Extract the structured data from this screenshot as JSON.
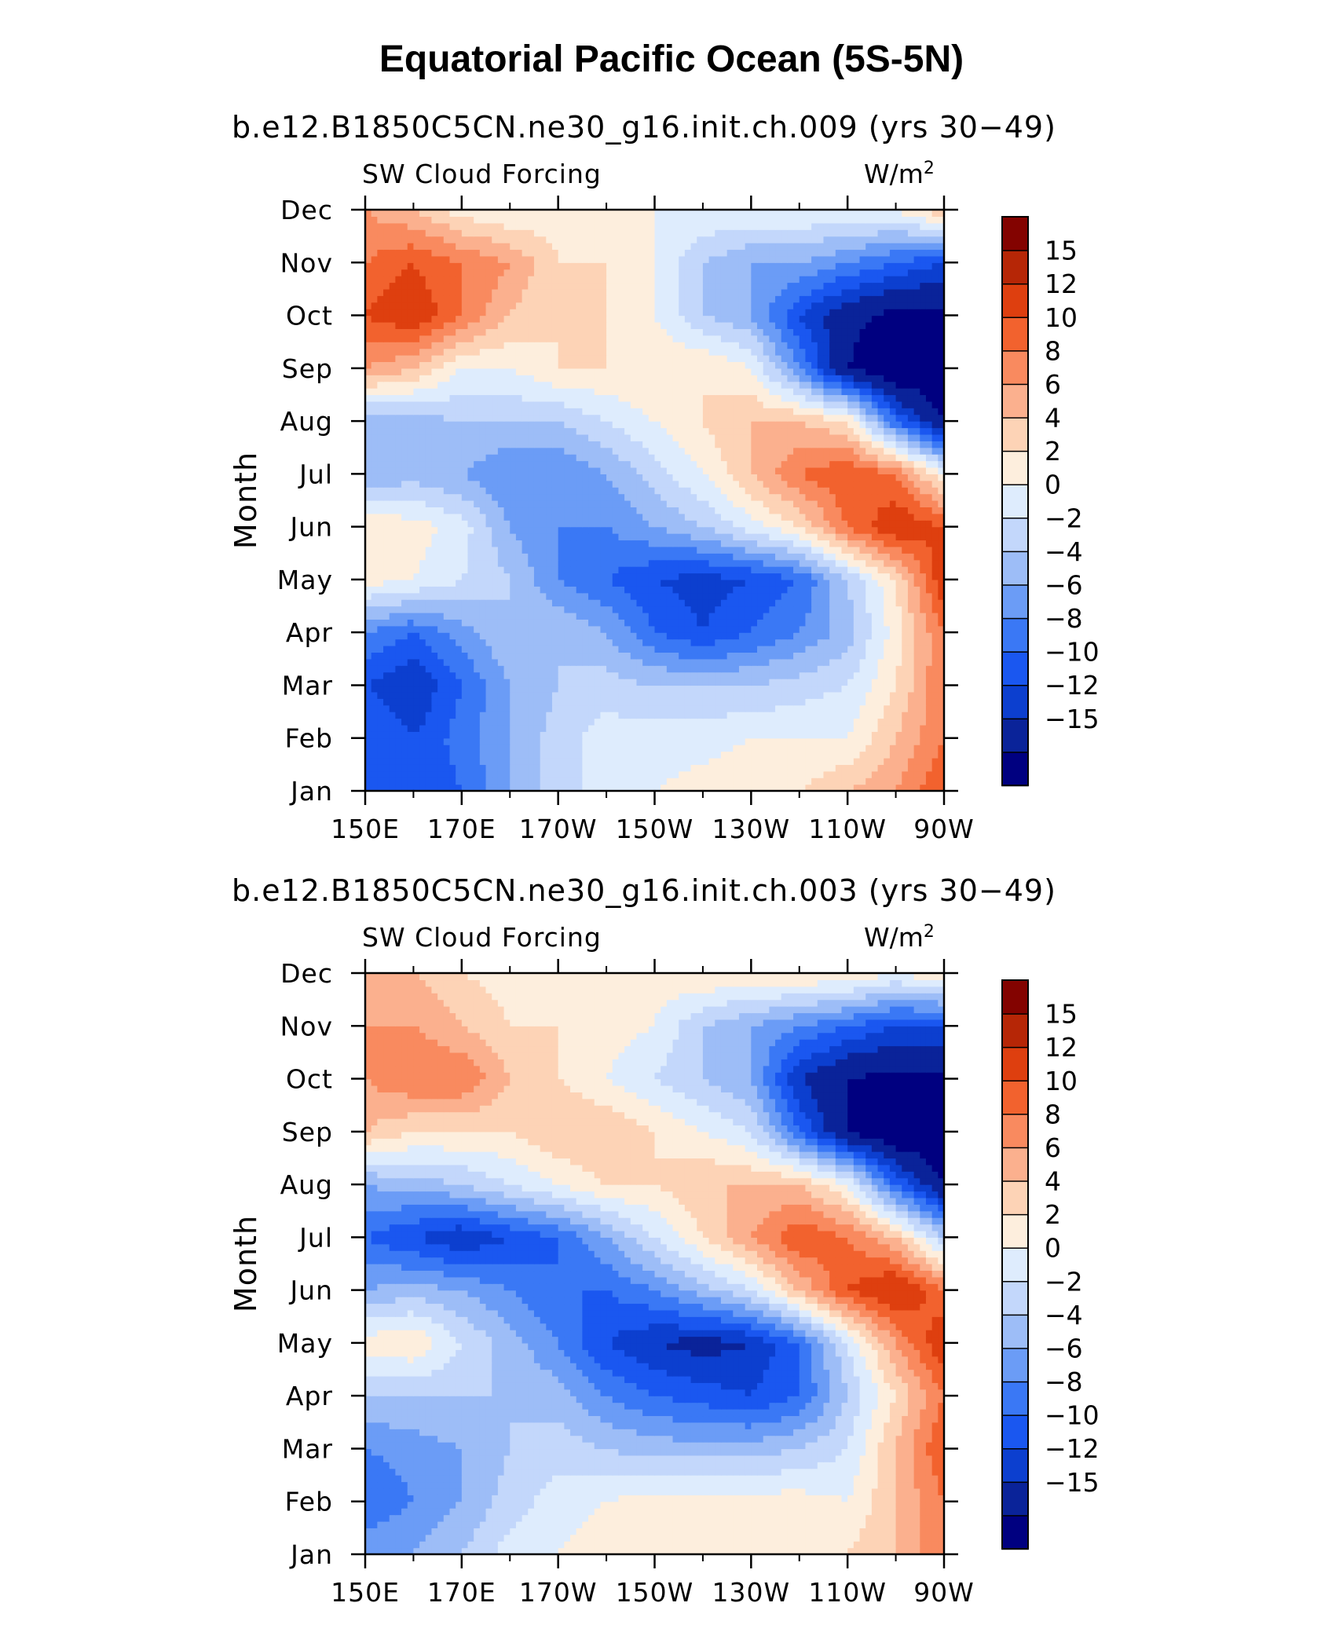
{
  "title": "Equatorial Pacific Ocean (5S-5N)",
  "colorbar": {
    "levels": [
      "15",
      "12",
      "10",
      "8",
      "6",
      "4",
      "2",
      "0",
      "−2",
      "−4",
      "−6",
      "−8",
      "−10",
      "−12",
      "−15"
    ],
    "colors": [
      "#000080",
      "#0a2399",
      "#0c3fcf",
      "#1a57f0",
      "#3a78f5",
      "#6b9cf6",
      "#9dbdf7",
      "#c3d7fb",
      "#deecfd",
      "#fdeedd",
      "#fdd3b6",
      "#fbb08e",
      "#f98a5f",
      "#f2622e",
      "#de3f0f",
      "#b62606",
      "#830300"
    ]
  },
  "panels": [
    {
      "case": "b.e12.B1850C5CN.ne30_g16.init.ch.009 (yrs 30−49)",
      "left_string": "SW Cloud Forcing",
      "right_string": "W/m",
      "right_superscript": "2",
      "ylabel": "Month"
    },
    {
      "case": "b.e12.B1850C5CN.ne30_g16.init.ch.003 (yrs 30−49)",
      "left_string": "SW Cloud Forcing",
      "right_string": "W/m",
      "right_superscript": "2",
      "ylabel": "Month"
    }
  ],
  "chart_data": [
    {
      "type": "heatmap",
      "title": "b.e12.B1850C5CN.ne30_g16.init.ch.009 (yrs 30−49)",
      "xlabel": "",
      "ylabel": "Month",
      "x_ticks": [
        "150E",
        "170E",
        "170W",
        "150W",
        "130W",
        "110W",
        "90W"
      ],
      "y_ticks": [
        "Jan",
        "Feb",
        "Mar",
        "Apr",
        "May",
        "Jun",
        "Jul",
        "Aug",
        "Sep",
        "Oct",
        "Nov",
        "Dec"
      ],
      "xlim": [
        150,
        270
      ],
      "ylim": [
        1,
        12
      ],
      "x": [
        150,
        160,
        170,
        180,
        190,
        200,
        210,
        220,
        230,
        240,
        250,
        260,
        270
      ],
      "months": [
        "Jan",
        "Feb",
        "Mar",
        "Apr",
        "May",
        "Jun",
        "Jul",
        "Aug",
        "Sep",
        "Oct",
        "Nov",
        "Dec"
      ],
      "z": [
        [
          -8,
          -10,
          -8,
          -4,
          -1,
          1,
          2,
          3,
          4,
          4,
          6,
          8,
          12
        ],
        [
          -8,
          -10,
          -7,
          -4,
          -1,
          1,
          1,
          1,
          2,
          2,
          2,
          6,
          10
        ],
        [
          -10,
          -12,
          -8,
          -4,
          -2,
          -1,
          -2,
          -2,
          -2,
          -1,
          0,
          4,
          10
        ],
        [
          -6,
          -8,
          -5,
          -2,
          -2,
          -4,
          -8,
          -10,
          -8,
          -6,
          -3,
          3,
          10
        ],
        [
          3,
          2,
          0,
          -2,
          -6,
          -8,
          -10,
          -11,
          -10,
          -8,
          -2,
          4,
          14
        ],
        [
          4,
          3,
          1,
          -4,
          -6,
          -6,
          -4,
          -2,
          1,
          4,
          10,
          14,
          12
        ],
        [
          -4,
          -3,
          -4,
          -6,
          -6,
          -4,
          -1,
          2,
          6,
          10,
          12,
          10,
          2
        ],
        [
          -4,
          -3,
          -2,
          -2,
          -2,
          0,
          2,
          4,
          6,
          6,
          4,
          -8,
          -15
        ],
        [
          8,
          6,
          2,
          2,
          4,
          4,
          4,
          4,
          2,
          -6,
          -15,
          -18,
          -18
        ],
        [
          12,
          14,
          10,
          6,
          4,
          4,
          2,
          -2,
          -4,
          -10,
          -14,
          -16,
          -16
        ],
        [
          10,
          12,
          10,
          8,
          4,
          4,
          2,
          -2,
          -4,
          -4,
          -6,
          -8,
          -10
        ],
        [
          8,
          6,
          3,
          2,
          3,
          3,
          2,
          2,
          2,
          2,
          2,
          2,
          6
        ]
      ],
      "levels": [
        -15,
        -12,
        -10,
        -8,
        -6,
        -4,
        -2,
        0,
        2,
        4,
        6,
        8,
        10,
        12,
        15
      ],
      "units": "W/m2"
    },
    {
      "type": "heatmap",
      "title": "b.e12.B1850C5CN.ne30_g16.init.ch.003 (yrs 30−49)",
      "xlabel": "",
      "ylabel": "Month",
      "x_ticks": [
        "150E",
        "170E",
        "170W",
        "150W",
        "130W",
        "110W",
        "90W"
      ],
      "y_ticks": [
        "Jan",
        "Feb",
        "Mar",
        "Apr",
        "May",
        "Jun",
        "Jul",
        "Aug",
        "Sep",
        "Oct",
        "Nov",
        "Dec"
      ],
      "xlim": [
        150,
        270
      ],
      "ylim": [
        1,
        12
      ],
      "x": [
        150,
        160,
        170,
        180,
        190,
        200,
        210,
        220,
        230,
        240,
        250,
        260,
        270
      ],
      "months": [
        "Jan",
        "Feb",
        "Mar",
        "Apr",
        "May",
        "Jun",
        "Jul",
        "Aug",
        "Sep",
        "Oct",
        "Nov",
        "Dec"
      ],
      "z": [
        [
          -4,
          -4,
          -2,
          1,
          2,
          3,
          4,
          4,
          4,
          4,
          4,
          6,
          10
        ],
        [
          -8,
          -6,
          -4,
          -1,
          1,
          2,
          3,
          3,
          3,
          3,
          2,
          6,
          10
        ],
        [
          -6,
          -5,
          -4,
          -2,
          -1,
          -2,
          -3,
          -3,
          -3,
          -2,
          0,
          6,
          12
        ],
        [
          -2,
          -2,
          -2,
          -2,
          -3,
          -6,
          -8,
          -9,
          -10,
          -8,
          -2,
          4,
          10
        ],
        [
          3,
          4,
          0,
          -3,
          -6,
          -10,
          -12,
          -13,
          -12,
          -8,
          0,
          8,
          14
        ],
        [
          -4,
          -3,
          -4,
          -6,
          -8,
          -8,
          -6,
          -3,
          0,
          6,
          12,
          15,
          10
        ],
        [
          -8,
          -10,
          -12,
          -10,
          -8,
          -4,
          0,
          4,
          8,
          12,
          10,
          6,
          -2
        ],
        [
          -4,
          -3,
          -2,
          0,
          2,
          4,
          4,
          6,
          6,
          6,
          2,
          -8,
          -15
        ],
        [
          6,
          4,
          4,
          4,
          6,
          6,
          4,
          2,
          0,
          -8,
          -15,
          -18,
          -18
        ],
        [
          8,
          10,
          10,
          6,
          4,
          2,
          0,
          -2,
          -4,
          -12,
          -15,
          -16,
          -16
        ],
        [
          8,
          8,
          6,
          4,
          4,
          3,
          2,
          -2,
          -4,
          -6,
          -8,
          -10,
          -10
        ],
        [
          8,
          6,
          4,
          3,
          3,
          3,
          3,
          4,
          4,
          4,
          4,
          2,
          4
        ]
      ],
      "levels": [
        -15,
        -12,
        -10,
        -8,
        -6,
        -4,
        -2,
        0,
        2,
        4,
        6,
        8,
        10,
        12,
        15
      ],
      "units": "W/m2"
    }
  ]
}
